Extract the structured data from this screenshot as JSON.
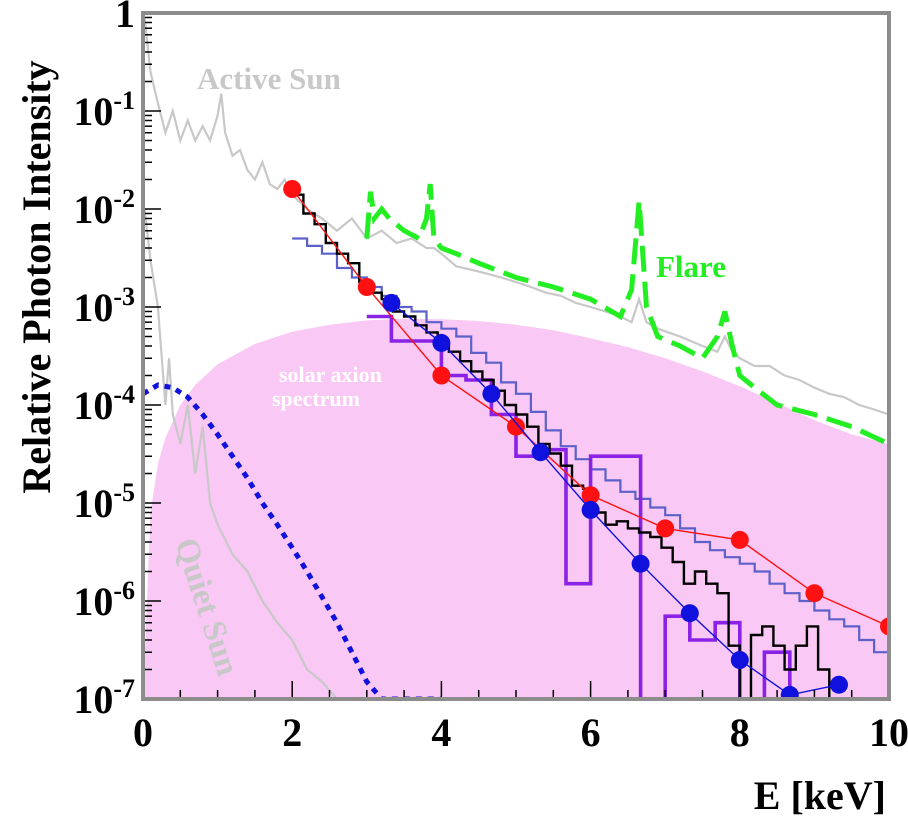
{
  "chart_data": {
    "type": "line",
    "x_label": "E [keV]",
    "y_label": "Relative Photon Intensity",
    "x_range": [
      0,
      10
    ],
    "y_range": [
      1e-07,
      1
    ],
    "y_scale": "log",
    "x_ticks": [
      "0",
      "2",
      "4",
      "6",
      "8",
      "10"
    ],
    "y_ticks": [
      {
        "value": 1,
        "base": "1",
        "exp": ""
      },
      {
        "value": 0.1,
        "base": "10",
        "exp": "-1"
      },
      {
        "value": 0.01,
        "base": "10",
        "exp": "-2"
      },
      {
        "value": 0.001,
        "base": "10",
        "exp": "-3"
      },
      {
        "value": 0.0001,
        "base": "10",
        "exp": "-4"
      },
      {
        "value": 1e-05,
        "base": "10",
        "exp": "-5"
      },
      {
        "value": 1e-06,
        "base": "10",
        "exp": "-6"
      },
      {
        "value": 1e-07,
        "base": "10",
        "exp": "-7"
      }
    ],
    "annotations": {
      "active_sun": "Active Sun",
      "flare": "Flare",
      "quiet_sun": "Quiet Sun",
      "axion_line1": "solar axion",
      "axion_line2": "spectrum"
    },
    "colors": {
      "axion_fill": "#f9c8f4",
      "active_sun": "#c8c8c8",
      "quiet_sun": "#c8c8c8",
      "flare": "#22ee22",
      "red": "#ff1111",
      "blue": "#1111dd",
      "black": "#000000",
      "slate": "#5c60c8",
      "purple": "#8a22e6",
      "axion_text": "#ffffff"
    },
    "series": [
      {
        "id": "axion",
        "kind": "fill",
        "x": [
          0,
          0.1,
          0.2,
          0.3,
          0.5,
          0.7,
          1.0,
          1.5,
          2.0,
          2.5,
          3.0,
          3.5,
          4.0,
          4.5,
          5.0,
          5.5,
          6.0,
          6.5,
          7.0,
          7.5,
          8.0,
          8.5,
          9.0,
          9.5,
          10.0
        ],
        "y": [
          1e-07,
          8e-06,
          2.5e-05,
          4.6e-05,
          0.0001,
          0.00016,
          0.00026,
          0.00042,
          0.00056,
          0.00066,
          0.00073,
          0.00076,
          0.00075,
          0.00072,
          0.00066,
          0.00058,
          0.00048,
          0.00039,
          0.0003,
          0.00022,
          0.000155,
          0.000105,
          7e-05,
          5e-05,
          4e-05
        ]
      },
      {
        "id": "active_sun",
        "kind": "line",
        "x": [
          0.02,
          0.1,
          0.2,
          0.3,
          0.4,
          0.5,
          0.6,
          0.7,
          0.8,
          0.9,
          1.0,
          1.05,
          1.1,
          1.2,
          1.3,
          1.4,
          1.5,
          1.6,
          1.7,
          1.8,
          1.9,
          2.0,
          2.2,
          2.4,
          2.6,
          2.8,
          3.0,
          3.2,
          3.4,
          3.6,
          3.8,
          3.9,
          4.0,
          4.2,
          4.4,
          4.6,
          4.8,
          5.0,
          5.2,
          5.4,
          5.6,
          5.8,
          6.0,
          6.2,
          6.4,
          6.55,
          6.65,
          6.75,
          6.9,
          7.2,
          7.5,
          7.7,
          7.8,
          7.9,
          8.0,
          8.2,
          8.4,
          8.6,
          8.8,
          9.0,
          9.2,
          9.4,
          9.6,
          9.8,
          10.0
        ],
        "y": [
          0.9,
          0.25,
          0.12,
          0.06,
          0.1,
          0.05,
          0.08,
          0.05,
          0.07,
          0.05,
          0.09,
          0.15,
          0.06,
          0.035,
          0.04,
          0.025,
          0.02,
          0.03,
          0.018,
          0.016,
          0.02,
          0.014,
          0.01,
          0.008,
          0.006,
          0.008,
          0.005,
          0.006,
          0.0045,
          0.005,
          0.004,
          0.004,
          0.0035,
          0.0026,
          0.0024,
          0.0022,
          0.002,
          0.0018,
          0.0016,
          0.0014,
          0.0013,
          0.0011,
          0.001,
          0.0009,
          0.0008,
          0.0007,
          0.0012,
          0.0007,
          0.0006,
          0.0005,
          0.0004,
          0.00035,
          0.0005,
          0.00035,
          0.0003,
          0.00025,
          0.00025,
          0.0002,
          0.00018,
          0.00015,
          0.00013,
          0.00012,
          0.0001,
          9e-05,
          8e-05
        ]
      },
      {
        "id": "quiet_sun",
        "kind": "line",
        "x": [
          0.02,
          0.1,
          0.2,
          0.3,
          0.35,
          0.4,
          0.5,
          0.6,
          0.7,
          0.8,
          0.9,
          1.0,
          1.2,
          1.4,
          1.6,
          1.8,
          2.0,
          2.2,
          2.4,
          2.6
        ],
        "y": [
          0.01,
          0.003,
          0.001,
          0.0001,
          0.0003,
          8e-05,
          4e-05,
          0.0001,
          2e-05,
          6e-05,
          1e-05,
          6e-06,
          3e-06,
          2e-06,
          1e-06,
          6e-07,
          4e-07,
          2e-07,
          1.5e-07,
          1e-07
        ]
      },
      {
        "id": "quiet_model",
        "kind": "line",
        "x": [
          0,
          0.2,
          0.4,
          0.6,
          0.8,
          1.0,
          1.2,
          1.4,
          1.6,
          1.8,
          2.0,
          2.2,
          2.4,
          2.6,
          2.8,
          3.0,
          3.2,
          3.4,
          3.6,
          3.8,
          4.0
        ],
        "y": [
          0.00013,
          0.00016,
          0.00015,
          0.00012,
          8e-05,
          5e-05,
          3e-05,
          1.8e-05,
          1e-05,
          6e-06,
          3.5e-06,
          2e-06,
          1.1e-06,
          6e-07,
          3e-07,
          1.5e-07,
          1e-07,
          1e-07,
          1e-07,
          1e-07,
          1e-07
        ]
      },
      {
        "id": "flare",
        "kind": "line",
        "x": [
          3.0,
          3.05,
          3.1,
          3.2,
          3.3,
          3.5,
          3.7,
          3.8,
          3.85,
          3.9,
          4.0,
          4.2,
          4.5,
          5.0,
          5.5,
          6.0,
          6.4,
          6.55,
          6.65,
          6.75,
          6.9,
          7.2,
          7.5,
          7.7,
          7.8,
          7.9,
          8.0,
          8.2,
          8.5,
          9.0,
          9.5,
          10.0
        ],
        "y": [
          0.005,
          0.015,
          0.008,
          0.01,
          0.008,
          0.006,
          0.005,
          0.008,
          0.018,
          0.005,
          0.004,
          0.0035,
          0.0028,
          0.002,
          0.0016,
          0.0012,
          0.0008,
          0.0015,
          0.012,
          0.001,
          0.0005,
          0.0004,
          0.0003,
          0.0005,
          0.0009,
          0.0004,
          0.0002,
          0.00015,
          0.0001,
          8e-05,
          6e-05,
          4e-05
        ]
      },
      {
        "id": "red",
        "kind": "line-markers",
        "x": [
          2.0,
          3.0,
          4.0,
          5.0,
          6.0,
          7.0,
          8.0,
          9.0,
          10.0
        ],
        "y": [
          0.016,
          0.0016,
          0.0002,
          6e-05,
          1.2e-05,
          5.5e-06,
          4.2e-06,
          1.2e-06,
          5.5e-07
        ]
      },
      {
        "id": "blue",
        "kind": "line-markers",
        "x": [
          3.33,
          4.0,
          4.67,
          5.33,
          6.0,
          6.67,
          7.33,
          8.0,
          8.67,
          9.33
        ],
        "y": [
          0.0011,
          0.00043,
          0.00013,
          3.3e-05,
          8.5e-06,
          2.4e-06,
          7.5e-07,
          2.5e-07,
          1.1e-07,
          1.4e-07
        ]
      },
      {
        "id": "black",
        "kind": "step",
        "x": [
          2.0,
          2.15,
          2.3,
          2.45,
          2.6,
          2.75,
          2.9,
          3.05,
          3.2,
          3.35,
          3.5,
          3.65,
          3.8,
          3.95,
          4.1,
          4.25,
          4.4,
          4.55,
          4.7,
          4.85,
          5.0,
          5.15,
          5.3,
          5.45,
          5.6,
          5.75,
          5.9,
          6.05,
          6.2,
          6.35,
          6.5,
          6.65,
          6.8,
          6.95,
          7.1,
          7.25,
          7.4,
          7.55,
          7.7,
          7.85,
          8.0,
          8.15,
          8.3,
          8.45,
          8.6,
          8.75,
          8.9,
          9.05,
          9.2,
          9.35,
          9.5,
          9.65,
          9.8,
          10.0
        ],
        "y": [
          0.014,
          0.009,
          0.007,
          0.0045,
          0.0035,
          0.0028,
          0.0018,
          0.0014,
          0.0012,
          0.0009,
          0.0008,
          0.00065,
          0.00055,
          0.0004,
          0.00035,
          0.00028,
          0.00022,
          0.00018,
          0.00014,
          0.0001,
          8e-05,
          6e-05,
          4e-05,
          3.2e-05,
          2.4e-05,
          1.5e-05,
          1.4e-05,
          8e-06,
          6e-06,
          6.5e-06,
          5.5e-06,
          5e-06,
          4.5e-06,
          3.5e-06,
          2.5e-06,
          1.5e-06,
          2e-06,
          1.5e-06,
          1.2e-06,
          3.5e-07,
          1e-07,
          4.5e-07,
          5.5e-07,
          3.5e-07,
          2e-07,
          3.5e-07,
          5.5e-07,
          2e-07,
          1e-07,
          1e-07,
          1e-07,
          1e-07,
          1e-07,
          1e-07
        ]
      },
      {
        "id": "slate",
        "kind": "step",
        "x": [
          2.0,
          2.2,
          2.4,
          2.6,
          2.8,
          3.0,
          3.2,
          3.4,
          3.6,
          3.8,
          4.0,
          4.2,
          4.4,
          4.6,
          4.8,
          5.0,
          5.2,
          5.4,
          5.6,
          5.8,
          6.0,
          6.2,
          6.4,
          6.6,
          6.8,
          7.0,
          7.2,
          7.4,
          7.6,
          7.8,
          8.0,
          8.2,
          8.4,
          8.6,
          8.8,
          9.0,
          9.2,
          9.4,
          9.6,
          9.8,
          10.0
        ],
        "y": [
          0.005,
          0.0042,
          0.0035,
          0.0025,
          0.002,
          0.0016,
          0.0013,
          0.001,
          0.0009,
          0.0007,
          0.0006,
          0.0005,
          0.00034,
          0.00027,
          0.00017,
          0.00013,
          8.5e-05,
          5.5e-05,
          3.8e-05,
          2.8e-05,
          2.2e-05,
          1.7e-05,
          1.3e-05,
          1.1e-05,
          9e-06,
          7.5e-06,
          5.5e-06,
          4e-06,
          3.3e-06,
          2.8e-06,
          2.4e-06,
          2e-06,
          1.5e-06,
          1.2e-06,
          1e-06,
          8e-07,
          6.5e-07,
          5.5e-07,
          4e-07,
          3e-07,
          2.4e-07
        ]
      },
      {
        "id": "purple",
        "kind": "step",
        "x": [
          3.0,
          3.33,
          3.67,
          4.0,
          4.33,
          4.67,
          5.0,
          5.33,
          5.67,
          6.0,
          6.33,
          6.67,
          7.0,
          7.33,
          7.67,
          8.0,
          8.33,
          8.67,
          9.0
        ],
        "y": [
          0.0008,
          0.00045,
          0.00045,
          0.0002,
          0.00018,
          8e-05,
          3e-05,
          3.5e-05,
          1.5e-06,
          3e-05,
          3e-05,
          1e-07,
          7e-07,
          4e-07,
          6e-07,
          1e-07,
          3e-07,
          1e-07,
          1e-07
        ]
      }
    ]
  }
}
